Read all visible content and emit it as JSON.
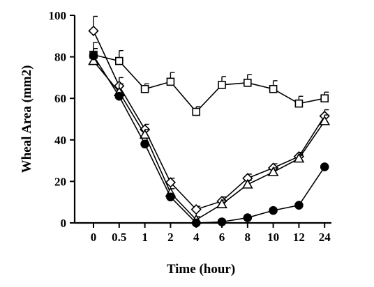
{
  "chart_data": {
    "type": "line",
    "title": "",
    "xlabel": "Time (hour)",
    "ylabel": "Wheal Area (mm2)",
    "categories": [
      "0",
      "0.5",
      "1",
      "2",
      "4",
      "6",
      "8",
      "10",
      "12",
      "24"
    ],
    "ylim": [
      0,
      100
    ],
    "yticks": [
      "0",
      "20",
      "40",
      "60",
      "80",
      "100"
    ],
    "grid": false,
    "series": [
      {
        "marker": "square-open",
        "color": "#000000",
        "values": [
          81,
          78,
          64.5,
          68,
          53.5,
          66.5,
          67.5,
          64.5,
          57.5,
          60
        ],
        "errors": [
          6,
          5,
          2.5,
          4.5,
          2.5,
          4,
          4,
          4,
          3.5,
          3
        ]
      },
      {
        "marker": "diamond-open",
        "color": "#000000",
        "values": [
          92.5,
          66,
          45,
          19.5,
          6.5,
          10.5,
          21.5,
          26.5,
          32,
          51.5
        ],
        "errors": [
          7,
          4,
          2.5,
          2,
          1.5,
          2,
          2,
          2,
          2,
          3
        ]
      },
      {
        "marker": "triangle-open",
        "color": "#000000",
        "values": [
          78,
          63,
          42.5,
          14.5,
          1.5,
          9,
          18.5,
          24.5,
          31,
          49
        ],
        "errors": [
          6,
          4,
          2.5,
          2,
          1.5,
          2,
          2,
          2,
          2,
          3
        ]
      },
      {
        "marker": "circle-filled",
        "color": "#000000",
        "values": [
          80.5,
          61,
          38,
          12.5,
          0,
          0.5,
          2.5,
          6,
          8.5,
          27
        ],
        "errors": [
          0,
          0,
          0,
          0,
          0,
          0,
          0,
          0,
          0,
          0
        ]
      }
    ]
  }
}
